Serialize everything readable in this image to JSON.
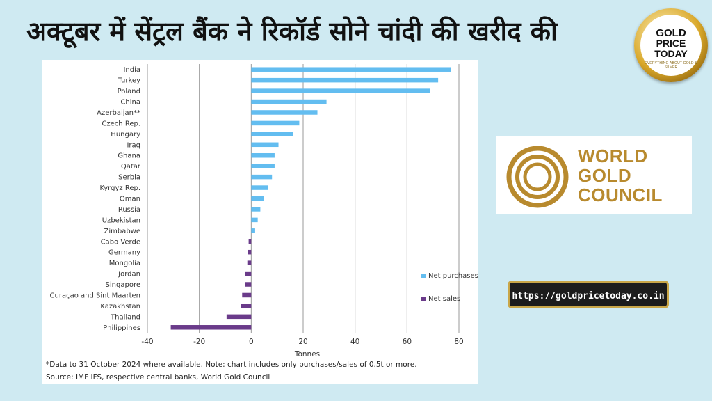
{
  "header": {
    "title": "अक्टूबर में सेंट्रल बैंक ने रिकॉर्ड सोने चांदी की खरीद की"
  },
  "badge": {
    "line1": "GOLD",
    "line2": "PRICE",
    "line3": "TODAY",
    "tagline": "EVERYTHING ABOUT GOLD & SILVER"
  },
  "sponsor": {
    "name_line1": "WORLD",
    "name_line2": "GOLD",
    "name_line3": "COUNCIL",
    "brand_color": "#b88a2e"
  },
  "website": {
    "url": "https://goldpricetoday.co.in"
  },
  "footnotes": {
    "note": "*Data to 31 October 2024 where available. Note: chart includes only purchases/sales of 0.5t or more.",
    "source": "Source: IMF IFS, respective central banks, World Gold Council"
  },
  "chart_data": {
    "type": "bar",
    "orientation": "horizontal",
    "categories": [
      "India",
      "Turkey",
      "Poland",
      "China",
      "Azerbaijan**",
      "Czech Rep.",
      "Hungary",
      "Iraq",
      "Ghana",
      "Qatar",
      "Serbia",
      "Kyrgyz Rep.",
      "Oman",
      "Russia",
      "Uzbekistan",
      "Zimbabwe",
      "Cabo Verde",
      "Germany",
      "Mongolia",
      "Jordan",
      "Singapore",
      "Curaçao and Sint Maarten",
      "Kazakhstan",
      "Thailand",
      "Philippines"
    ],
    "values": [
      77,
      72,
      69,
      29,
      25.5,
      18.5,
      16,
      10.5,
      9,
      9,
      8,
      6.5,
      5,
      3.5,
      2.5,
      1.5,
      -1,
      -1.2,
      -1.5,
      -2.3,
      -2.3,
      -3.5,
      -4,
      -9.5,
      -31
    ],
    "series": [
      {
        "name": "Net purchases",
        "color": "#63bdf0"
      },
      {
        "name": "Net sales",
        "color": "#6a3b8a"
      }
    ],
    "xlabel": "Tonnes",
    "xlim": [
      -40,
      80
    ],
    "xticks": [
      -40,
      -20,
      0,
      20,
      40,
      60,
      80
    ],
    "grid": true,
    "legend_position": "right"
  }
}
